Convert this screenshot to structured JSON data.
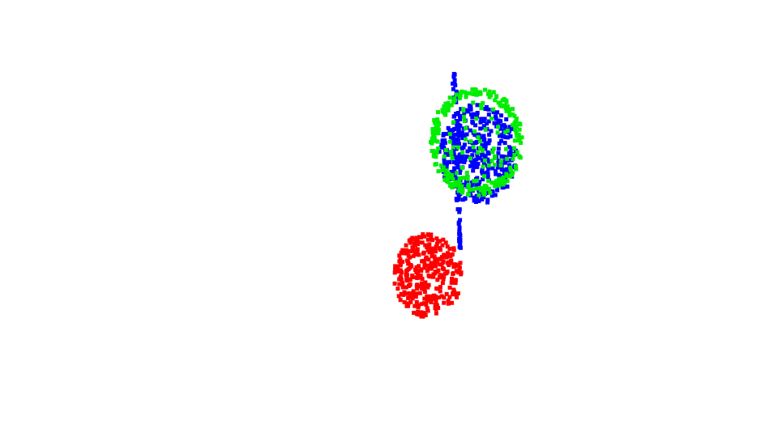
{
  "chart_data": {
    "type": "scatter",
    "title": "",
    "xlabel": "",
    "ylabel": "",
    "axes_visible": false,
    "grid": false,
    "legend": "none",
    "series": [
      {
        "color": "#ff0000",
        "cluster": {
          "cx": 528,
          "cy": 340,
          "rx": 42,
          "ry": 52,
          "count": 340,
          "seed": 11
        }
      },
      {
        "color": "#0000ff",
        "cluster": {
          "cx": 590,
          "cy": 190,
          "rx": 48,
          "ry": 62,
          "count": 360,
          "seed": 23
        },
        "tail": {
          "x0": 560,
          "y0": 85,
          "x1": 568,
          "y1": 312,
          "width": 14,
          "count": 90,
          "seed": 29
        }
      },
      {
        "color": "#00ee00",
        "ring": {
          "cx": 588,
          "cy": 175,
          "rx": 52,
          "ry": 62,
          "thickness": 10,
          "count": 220,
          "seed": 31
        },
        "cluster": {
          "cx": 585,
          "cy": 180,
          "rx": 44,
          "ry": 55,
          "count": 80,
          "seed": 37
        }
      }
    ]
  }
}
